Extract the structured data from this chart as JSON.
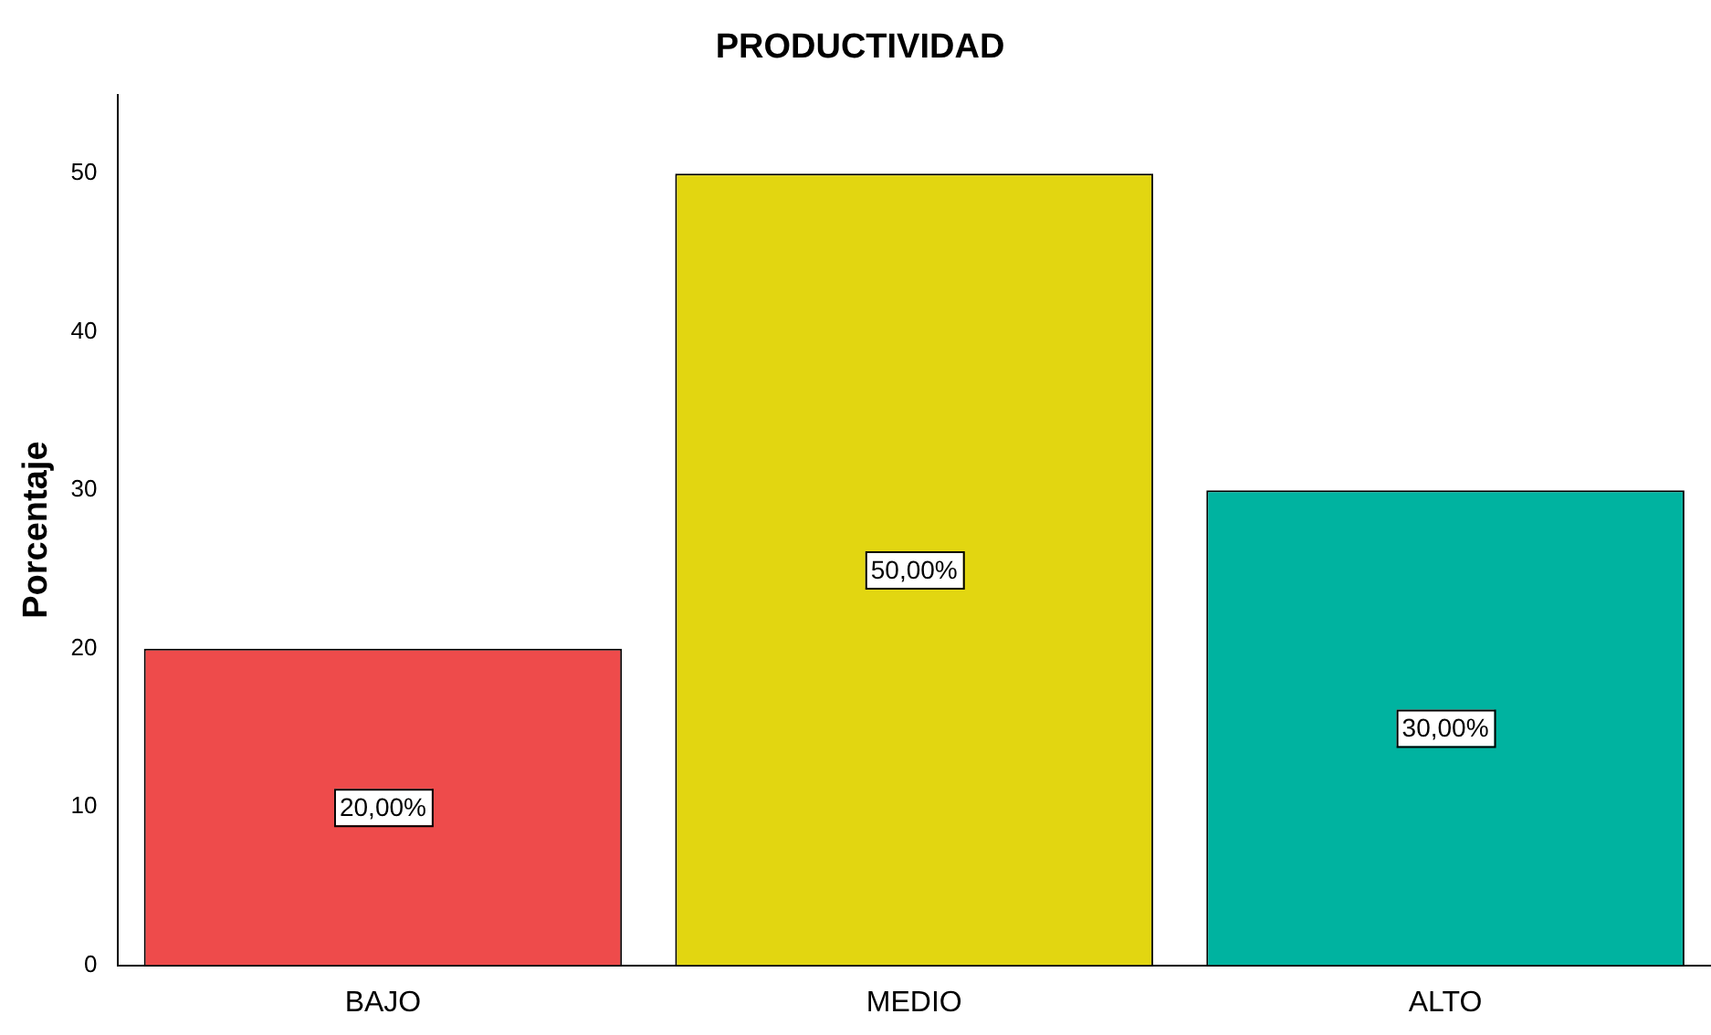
{
  "chart_data": {
    "type": "bar",
    "title": "PRODUCTIVIDAD",
    "ylabel": "Porcentaje",
    "categories": [
      "BAJO",
      "MEDIO",
      "ALTO"
    ],
    "values": [
      20,
      50,
      30
    ],
    "colors": [
      "#ee4b4b",
      "#e2d611",
      "#00b3a0"
    ],
    "value_labels": [
      "20,00%",
      "50,00%",
      "30,00%"
    ],
    "ylim": [
      0,
      55
    ],
    "yticks": [
      0,
      10,
      20,
      30,
      40,
      50
    ],
    "grid": false,
    "legend": false
  }
}
